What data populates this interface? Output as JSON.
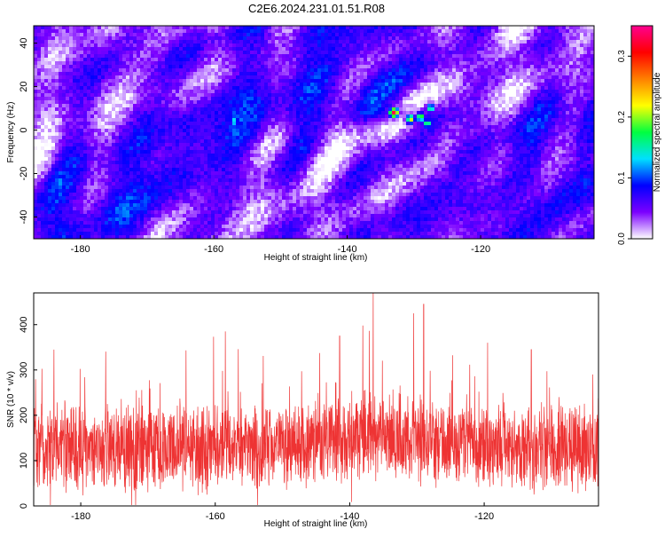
{
  "figure": {
    "title": "C2E6.2024.231.01.51.R08"
  },
  "chart_data": [
    {
      "type": "heatmap",
      "xlabel": "Height of straight line (km)",
      "ylabel": "Frequency (Hz)",
      "xlim": [
        -187,
        -103
      ],
      "ylim": [
        -50,
        48
      ],
      "x_ticks": [
        -180,
        -160,
        -140,
        -120
      ],
      "y_ticks": [
        -40,
        -20,
        0,
        20,
        40
      ],
      "colorbar": {
        "label": "Normalized spectral amplitude",
        "range": [
          0,
          0.35
        ],
        "ticks": [
          0.0,
          0.1,
          0.2,
          0.3
        ],
        "colormap": [
          "#ffffff",
          "#7b00ff",
          "#0000ff",
          "#00e0ff",
          "#00ff40",
          "#ffff00",
          "#ff8000",
          "#ff0000",
          "#ff0090"
        ]
      },
      "background_level": 0.05,
      "hotspots": [
        {
          "x": -133,
          "y": 8,
          "value": 0.33
        },
        {
          "x": -130.5,
          "y": 5,
          "value": 0.22
        },
        {
          "x": -129,
          "y": 6,
          "value": 0.2
        },
        {
          "x": -127.5,
          "y": 10,
          "value": 0.17
        },
        {
          "x": -135.5,
          "y": 9,
          "value": 0.12
        },
        {
          "x": -128,
          "y": 3,
          "value": 0.18
        },
        {
          "x": -137,
          "y": 12,
          "value": 0.1
        },
        {
          "x": -157,
          "y": 4,
          "value": 0.15
        }
      ]
    },
    {
      "type": "line",
      "xlabel": "Height of straight line (km)",
      "ylabel": "SNR (10 * v/v)",
      "xlim": [
        -187,
        -103
      ],
      "ylim": [
        0,
        470
      ],
      "x_ticks": [
        -180,
        -160,
        -140,
        -120
      ],
      "y_ticks": [
        0,
        100,
        200,
        300,
        400
      ],
      "series_color": "#ee3333",
      "typical_mean": 125,
      "peaks": [
        {
          "x": -136.5,
          "y": 470
        },
        {
          "x": -130.5,
          "y": 425
        },
        {
          "x": -129,
          "y": 445
        },
        {
          "x": -141.5,
          "y": 375
        },
        {
          "x": -158.5,
          "y": 385
        },
        {
          "x": -119.5,
          "y": 360
        },
        {
          "x": -113,
          "y": 345
        },
        {
          "x": -184,
          "y": 345
        }
      ]
    }
  ]
}
